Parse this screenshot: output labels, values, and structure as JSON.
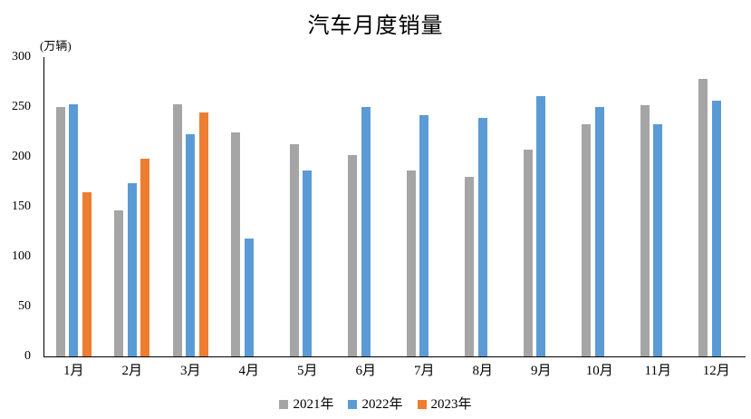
{
  "chart_data": {
    "type": "bar",
    "title": "汽车月度销量",
    "unit_label": "(万辆)",
    "categories": [
      "1月",
      "2月",
      "3月",
      "4月",
      "5月",
      "6月",
      "7月",
      "8月",
      "9月",
      "10月",
      "11月",
      "12月"
    ],
    "series": [
      {
        "name": "2021年",
        "color": "#A5A5A5",
        "values": [
          250,
          146,
          253,
          225,
          213,
          202,
          186,
          180,
          207,
          233,
          252,
          278
        ]
      },
      {
        "name": "2022年",
        "color": "#5B9BD5",
        "values": [
          253,
          174,
          223,
          118,
          186,
          250,
          242,
          239,
          261,
          250,
          233,
          256
        ]
      },
      {
        "name": "2023年",
        "color": "#ED7D31",
        "values": [
          165,
          198,
          245,
          null,
          null,
          null,
          null,
          null,
          null,
          null,
          null,
          null
        ]
      }
    ],
    "ylim": [
      0,
      300
    ],
    "yticks": [
      0,
      50,
      100,
      150,
      200,
      250,
      300
    ],
    "grid": false,
    "legend_position": "bottom",
    "xlabel": "",
    "ylabel": "(万辆)",
    "axis_color": "#000000",
    "background": "#FFFFFF"
  }
}
